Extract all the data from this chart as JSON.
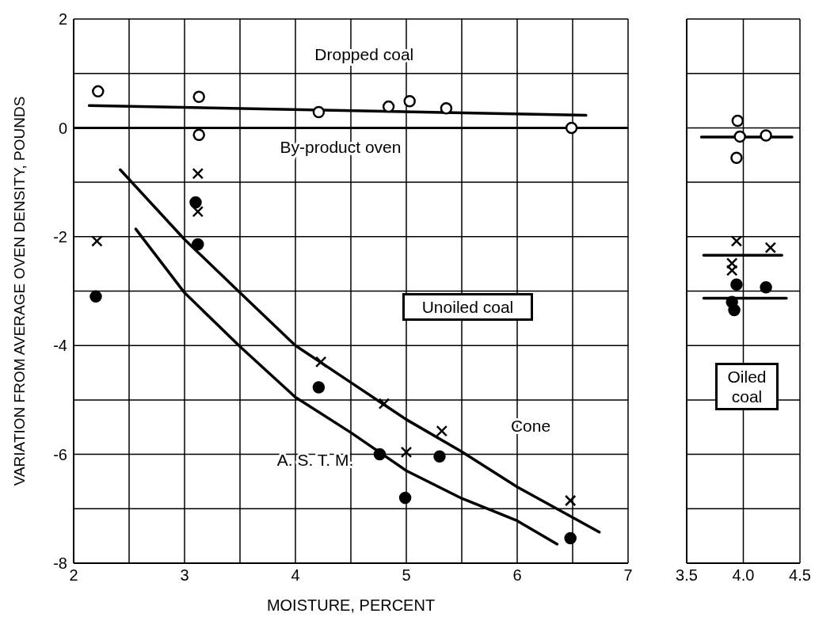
{
  "chart_data": [
    {
      "type": "scatter",
      "xlabel": "MOISTURE, PERCENT",
      "ylabel": "VARIATION FROM AVERAGE OVEN DENSITY, POUNDS",
      "xlim": [
        2,
        7
      ],
      "ylim": [
        -8,
        2
      ],
      "xticks": [
        2,
        {
          "value": 2.5,
          "label": null
        },
        3,
        {
          "value": 3.5,
          "label": null
        },
        4,
        {
          "value": 4.5,
          "label": null
        },
        5,
        {
          "value": 5.5,
          "label": null
        },
        6,
        {
          "value": 6.5,
          "label": null
        },
        7
      ],
      "yticks": [
        -8,
        {
          "value": -7,
          "label": null
        },
        -6,
        {
          "value": -5,
          "label": null
        },
        -4,
        {
          "value": -3,
          "label": null
        },
        -2,
        {
          "value": -1,
          "label": null
        },
        0,
        {
          "value": 1,
          "label": null
        },
        2
      ],
      "grid": true,
      "ref_lines": [
        {
          "axis": "y",
          "value": 0,
          "label": "By-product oven",
          "color": "#000000"
        }
      ],
      "annotations": [
        "Unoiled coal"
      ],
      "series": [
        {
          "type": "line",
          "name": "Dropped coal",
          "color": "#000000",
          "x": [
            2.14,
            6.62
          ],
          "values": [
            0.41,
            0.23
          ]
        },
        {
          "type": "scatter",
          "marker": "circle",
          "color": "#ffffff",
          "x": [
            2.22,
            3.13,
            3.13,
            4.21,
            4.84,
            5.03,
            5.36,
            6.49
          ],
          "values": [
            0.67,
            0.57,
            -0.13,
            0.29,
            0.39,
            0.49,
            0.36,
            0.0
          ]
        },
        {
          "type": "scatter",
          "marker": "cross",
          "color": "#000000",
          "x": [
            2.21,
            3.12,
            3.12,
            4.23,
            4.8,
            5.0,
            5.32,
            6.48
          ],
          "values": [
            -2.08,
            -0.84,
            -1.54,
            -4.3,
            -5.07,
            -5.96,
            -5.57,
            -6.85
          ]
        },
        {
          "type": "scatter",
          "marker": "circle",
          "color": "#000000",
          "x": [
            2.2,
            3.1,
            3.12,
            4.21,
            4.76,
            4.99,
            5.3,
            6.48
          ],
          "values": [
            -3.1,
            -1.37,
            -2.14,
            -4.77,
            -6.0,
            -6.8,
            -6.04,
            -7.54
          ]
        },
        {
          "type": "line",
          "name": "Cone",
          "color": "#000000",
          "x": [
            2.42,
            3.0,
            3.5,
            4.0,
            4.5,
            5.0,
            5.5,
            6.0,
            6.74
          ],
          "values": [
            -0.77,
            -2.05,
            -3.03,
            -4.0,
            -4.68,
            -5.36,
            -5.95,
            -6.6,
            -7.43
          ]
        },
        {
          "type": "line",
          "name": "A. S. T. M.",
          "color": "#000000",
          "x": [
            2.56,
            3.0,
            3.5,
            4.0,
            4.5,
            5.0,
            5.5,
            6.0,
            6.36
          ],
          "values": [
            -1.86,
            -3.03,
            -4.02,
            -4.95,
            -5.6,
            -6.3,
            -6.81,
            -7.22,
            -7.65
          ]
        }
      ]
    },
    {
      "type": "scatter",
      "xlim": [
        3.5,
        4.5
      ],
      "ylim": [
        -8,
        2
      ],
      "tick_labels": "x",
      "xticks": [
        3.5,
        {
          "value": 4,
          "label": "4.0"
        },
        4.5
      ],
      "yticks": [
        -8,
        -7,
        -6,
        -5,
        -4,
        -3,
        -2,
        -1,
        0,
        1,
        2
      ],
      "grid": true,
      "annotations": [
        "Oiled coal"
      ],
      "series": [
        {
          "type": "scatter",
          "marker": "circle",
          "color": "#ffffff",
          "x": [
            3.95,
            3.97,
            4.2,
            3.94
          ],
          "values": [
            0.13,
            -0.16,
            -0.14,
            -0.55
          ]
        },
        {
          "type": "scatter",
          "marker": "cross",
          "color": "#000000",
          "x": [
            3.94,
            4.24,
            3.9,
            3.9
          ],
          "values": [
            -2.08,
            -2.2,
            -2.49,
            -2.62
          ]
        },
        {
          "type": "scatter",
          "marker": "circle",
          "color": "#000000",
          "x": [
            3.94,
            4.2,
            3.9,
            3.92
          ],
          "values": [
            -2.88,
            -2.93,
            -3.2,
            -3.35
          ]
        },
        {
          "type": "line",
          "color": "#000000",
          "x": [
            3.63,
            4.43
          ],
          "values": [
            -0.17,
            -0.17
          ]
        },
        {
          "type": "line",
          "color": "#000000",
          "x": [
            3.65,
            4.34
          ],
          "values": [
            -2.34,
            -2.34
          ]
        },
        {
          "type": "line",
          "color": "#000000",
          "x": [
            3.65,
            4.38
          ],
          "values": [
            -3.13,
            -3.13
          ]
        }
      ]
    }
  ]
}
